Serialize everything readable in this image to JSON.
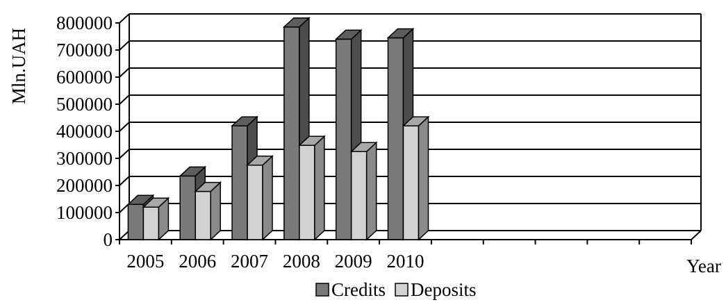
{
  "chart_data": {
    "type": "bar",
    "title": "",
    "xlabel": "Year",
    "ylabel": "Mln.UAH",
    "ylim": [
      0,
      800000
    ],
    "yticks": [
      "0",
      "100000",
      "200000",
      "300000",
      "400000",
      "500000",
      "600000",
      "700000",
      "800000"
    ],
    "categories": [
      "2005",
      "2006",
      "2007",
      "2008",
      "2009",
      "2010"
    ],
    "empty_slots_after": 5,
    "grid": true,
    "three_d": true,
    "legend_position": "bottom",
    "series": [
      {
        "name": "Credits",
        "values": [
          130000,
          235000,
          420000,
          785000,
          740000,
          745000
        ],
        "color": "#7a7a7a",
        "side_color": "#4d4d4d",
        "top_color": "#5e5e5e"
      },
      {
        "name": "Deposits",
        "values": [
          120000,
          178000,
          275000,
          348000,
          325000,
          420000
        ],
        "color": "#d2d2d2",
        "side_color": "#8a8a8a",
        "top_color": "#a8a8a8"
      }
    ]
  }
}
